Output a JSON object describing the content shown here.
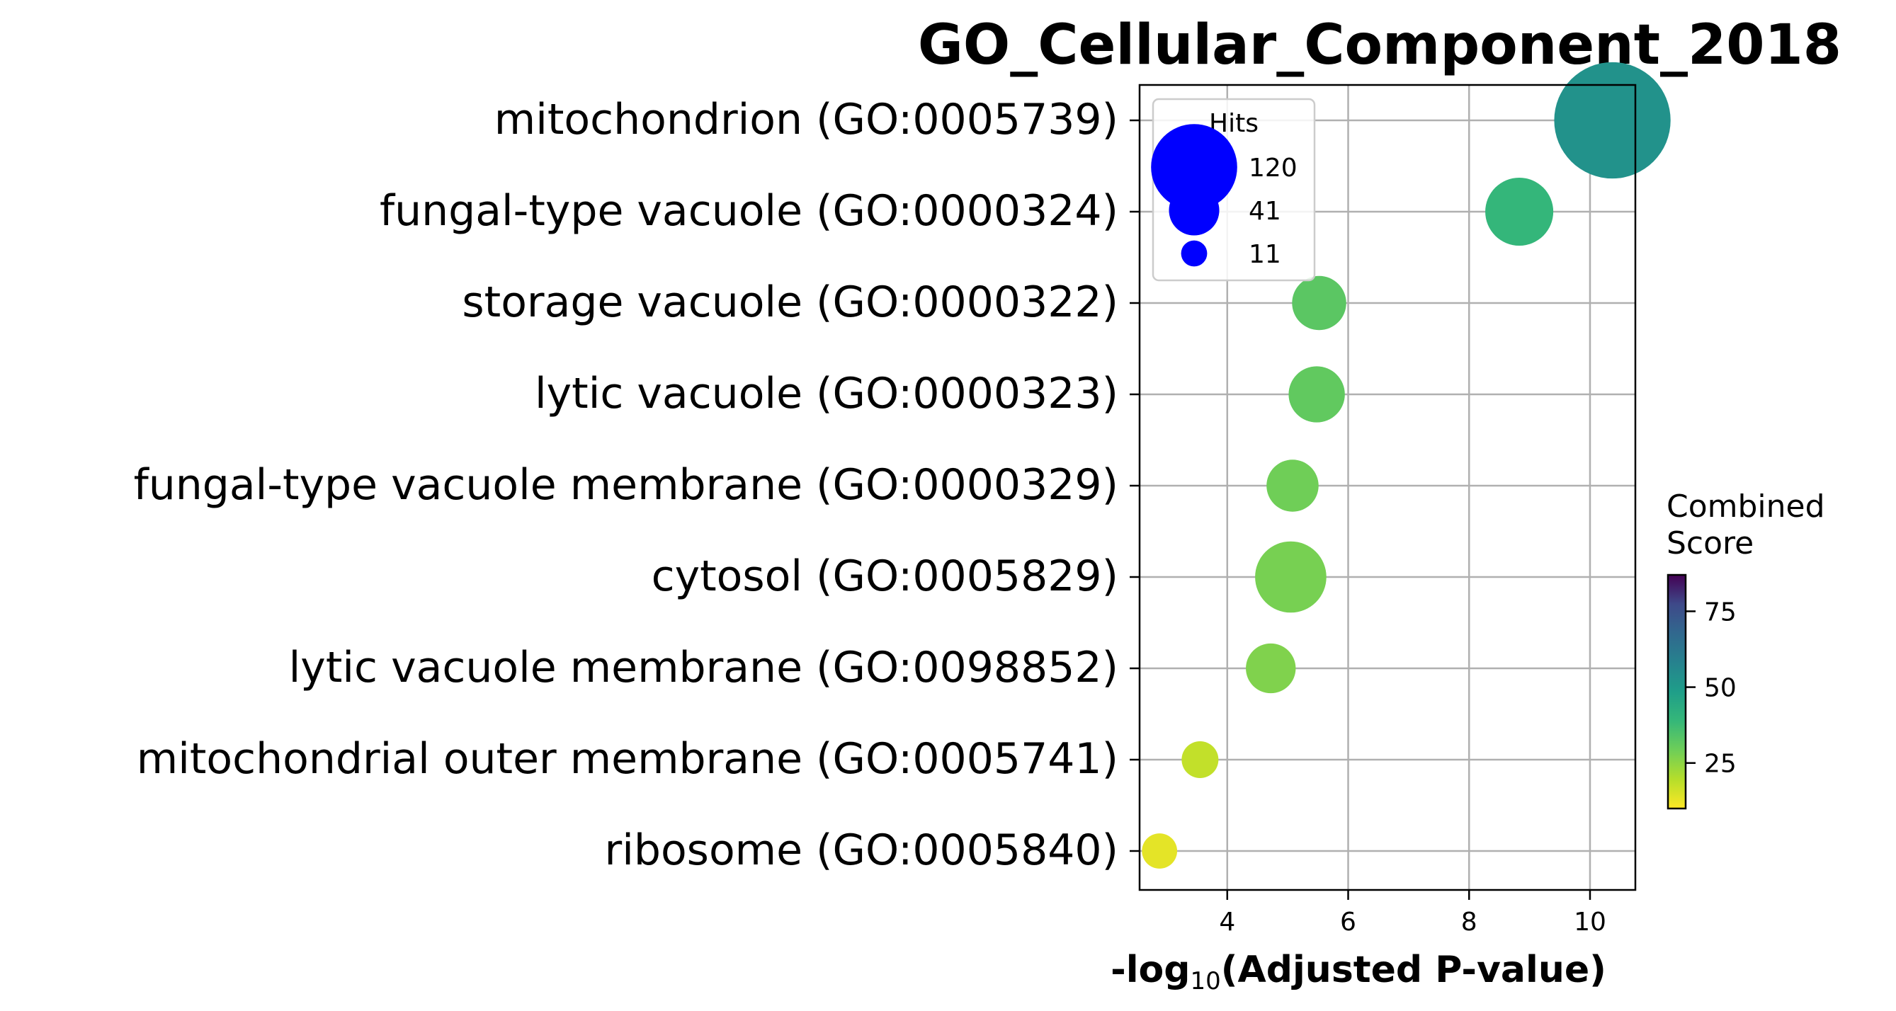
{
  "chart_data": {
    "type": "scatter",
    "title": "GO_Cellular_Component_2018",
    "xlabel_prefix": "-log",
    "xlabel_sub": "10",
    "xlabel_suffix": "(Adjusted P-value)",
    "xlim": [
      2.55,
      10.75
    ],
    "x_ticks": [
      4,
      6,
      8,
      10
    ],
    "grid": true,
    "terms": [
      {
        "label": "mitochondrion (GO:0005739)",
        "x": 10.37,
        "hits": 120,
        "score": 48
      },
      {
        "label": "fungal-type vacuole (GO:0000324)",
        "x": 8.83,
        "hits": 41,
        "score": 36
      },
      {
        "label": "storage vacuole (GO:0000322)",
        "x": 5.52,
        "hits": 26,
        "score": 30
      },
      {
        "label": "lytic vacuole (GO:0000323)",
        "x": 5.48,
        "hits": 28,
        "score": 29
      },
      {
        "label": "fungal-type vacuole membrane (GO:0000329)",
        "x": 5.08,
        "hits": 24,
        "score": 27
      },
      {
        "label": "cytosol (GO:0005829)",
        "x": 5.05,
        "hits": 45,
        "score": 26
      },
      {
        "label": "lytic vacuole membrane (GO:0098852)",
        "x": 4.72,
        "hits": 22,
        "score": 25
      },
      {
        "label": "mitochondrial outer membrane (GO:0005741)",
        "x": 3.55,
        "hits": 12,
        "score": 17
      },
      {
        "label": "ribosome (GO:0005840)",
        "x": 2.88,
        "hits": 11,
        "score": 13
      }
    ],
    "size_legend": {
      "title": "Hits",
      "color": "#0000ff",
      "entries": [
        {
          "label": "120",
          "hits": 120
        },
        {
          "label": "41",
          "hits": 41
        },
        {
          "label": "11",
          "hits": 11
        }
      ]
    },
    "colorbar": {
      "title_line1": "Combined",
      "title_line2": "Score",
      "colormap": "viridis_r",
      "range": [
        10,
        87
      ],
      "ticks": [
        25,
        50,
        75
      ]
    }
  }
}
